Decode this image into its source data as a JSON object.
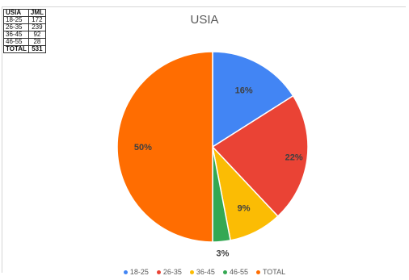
{
  "table": {
    "headers": [
      "USIA",
      "JML"
    ],
    "rows": [
      {
        "usia": "18-25",
        "jml": "172"
      },
      {
        "usia": "26-35",
        "jml": "239"
      },
      {
        "usia": "36-45",
        "jml": "92"
      },
      {
        "usia": "46-55",
        "jml": "28"
      },
      {
        "usia": "TOTAL",
        "jml": "531"
      }
    ]
  },
  "chart_data": {
    "type": "pie",
    "title": "USIA",
    "categories": [
      "18-25",
      "26-35",
      "36-45",
      "46-55",
      "TOTAL"
    ],
    "values": [
      16,
      22,
      9,
      3,
      50
    ],
    "labels": [
      "16%",
      "22%",
      "9%",
      "3%",
      "50%"
    ],
    "colors": [
      "#4285f4",
      "#ea4335",
      "#fbbc04",
      "#34a853",
      "#ff6d01"
    ],
    "legend_position": "bottom"
  }
}
